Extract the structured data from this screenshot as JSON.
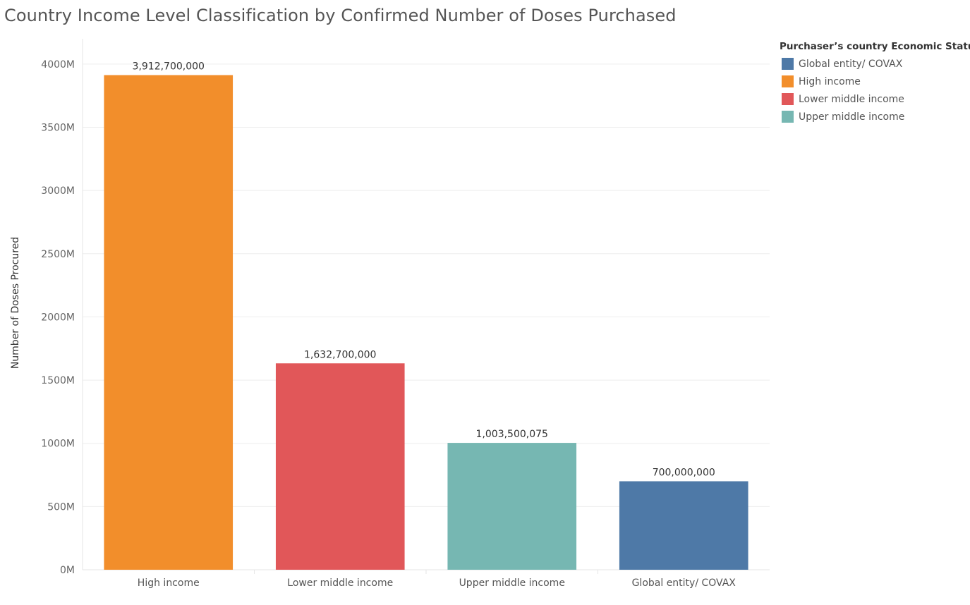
{
  "title": "Country Income Level Classification by Confirmed Number of Doses Purchased",
  "legend": {
    "title": "Purchaser’s country Economic  Status",
    "items": [
      {
        "label": "Global entity/ COVAX",
        "color": "#4e79a7"
      },
      {
        "label": "High income",
        "color": "#f28e2b"
      },
      {
        "label": "Lower middle income",
        "color": "#e15759"
      },
      {
        "label": "Upper middle income",
        "color": "#76b7b2"
      }
    ]
  },
  "chart_data": {
    "type": "bar",
    "title": "Country Income Level Classification by Confirmed Number of Doses Purchased",
    "xlabel": "",
    "ylabel": "Number of Doses Procured",
    "categories": [
      "High income",
      "Lower middle income",
      "Upper middle income",
      "Global entity/ COVAX"
    ],
    "values": [
      3912700000,
      1632700000,
      1003500075,
      700000000
    ],
    "value_labels": [
      "3,912,700,000",
      "1,632,700,000",
      "1,003,500,075",
      "700,000,000"
    ],
    "colors": [
      "#f28e2b",
      "#e15759",
      "#76b7b2",
      "#4e79a7"
    ],
    "ylim": [
      0,
      4200000000
    ],
    "yticks": [
      0,
      500000000,
      1000000000,
      1500000000,
      2000000000,
      2500000000,
      3000000000,
      3500000000,
      4000000000
    ],
    "ytick_labels": [
      "0M",
      "500M",
      "1000M",
      "1500M",
      "2000M",
      "2500M",
      "3000M",
      "3500M",
      "4000M"
    ],
    "grid": true,
    "legend_position": "right"
  }
}
